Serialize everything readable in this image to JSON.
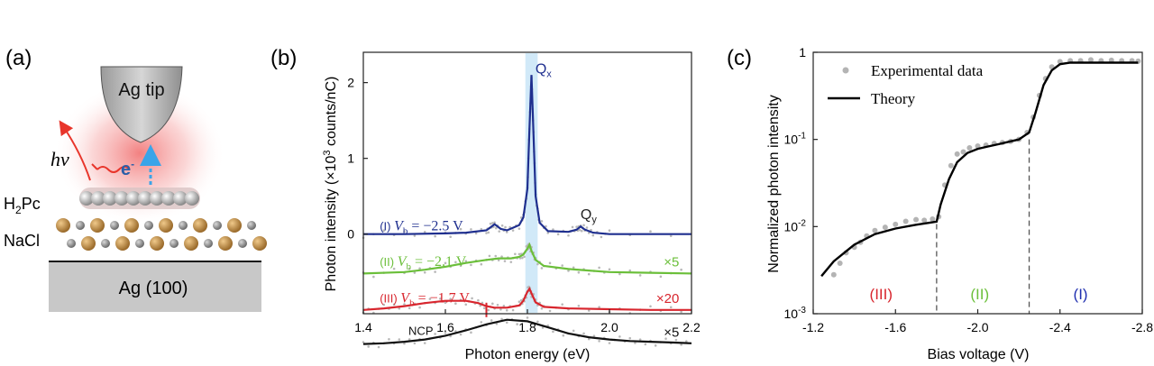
{
  "panel_labels": [
    "(a)",
    "(b)",
    "(c)"
  ],
  "schematic": {
    "tip_label": "Ag tip",
    "photon_label": "hν",
    "electron_label": "e",
    "electron_superscript": "-",
    "molecule_label": "H",
    "molecule_subscript": "2",
    "molecule_suffix": "Pc",
    "salt_label": "NaCl",
    "substrate_label": "Ag (100)",
    "colors": {
      "photon": "#e8352b",
      "electron": "#3aa4e8",
      "tip": "#b8b8b8",
      "substrate": "#c8c8c8"
    }
  },
  "chart_data": [
    {
      "type": "line",
      "xlabel": "Photon energy (eV)",
      "ylabel_prefix": "Photon intensity (×10",
      "ylabel_sup": "3",
      "ylabel_suffix": " counts/nC)",
      "xlim": [
        1.4,
        2.2
      ],
      "ylim": [
        -1.05,
        2.4
      ],
      "xticks": [
        "1.4",
        "1.6",
        "1.8",
        "2.0",
        "2.2"
      ],
      "yticks": [
        "0",
        "1",
        "2"
      ],
      "highlight_band": [
        1.795,
        1.825
      ],
      "series": [
        {
          "name": "(I) Vb = −2.5 V",
          "label_prefix": "(I) ",
          "label_var": "V",
          "label_sub": "b",
          "label_value": " = −2.5 V",
          "multiplier": "",
          "color": "#1f2f8f",
          "x": [
            1.4,
            1.5,
            1.6,
            1.65,
            1.7,
            1.71,
            1.72,
            1.735,
            1.75,
            1.78,
            1.79,
            1.8,
            1.805,
            1.81,
            1.815,
            1.82,
            1.83,
            1.85,
            1.9,
            1.92,
            1.93,
            1.94,
            1.96,
            2.0,
            2.2
          ],
          "y": [
            0.0,
            0.0,
            0.01,
            0.02,
            0.05,
            0.09,
            0.13,
            0.07,
            0.05,
            0.12,
            0.22,
            0.6,
            1.4,
            2.1,
            1.3,
            0.5,
            0.15,
            0.04,
            0.03,
            0.06,
            0.1,
            0.06,
            0.02,
            0.0,
            0.0
          ]
        },
        {
          "name": "(II) Vb = −2.1 V",
          "label_prefix": "(II) ",
          "label_var": "V",
          "label_sub": "b",
          "label_value": " = −2.1 V",
          "multiplier": "×5",
          "color": "#6bbf3a",
          "offset": -0.52,
          "x": [
            1.4,
            1.5,
            1.55,
            1.6,
            1.65,
            1.7,
            1.73,
            1.76,
            1.78,
            1.79,
            1.8,
            1.805,
            1.81,
            1.82,
            1.84,
            1.9,
            1.95,
            2.0,
            2.1,
            2.2
          ],
          "y": [
            0.0,
            0.02,
            0.05,
            0.09,
            0.14,
            0.18,
            0.2,
            0.2,
            0.22,
            0.25,
            0.33,
            0.38,
            0.3,
            0.18,
            0.1,
            0.06,
            0.04,
            0.02,
            0.01,
            0.0
          ]
        },
        {
          "name": "(III) Vb = −1.7 V",
          "label_prefix": "(III) ",
          "label_var": "V",
          "label_sub": "b",
          "label_value": " = −1.7 V",
          "multiplier": "×20",
          "color": "#d8262e",
          "offset": -1.0,
          "x": [
            1.4,
            1.45,
            1.5,
            1.55,
            1.6,
            1.65,
            1.68,
            1.7,
            1.72,
            1.75,
            1.78,
            1.79,
            1.8,
            1.805,
            1.81,
            1.82,
            1.84,
            1.9,
            2.0,
            2.1,
            2.2
          ],
          "y": [
            0.0,
            0.02,
            0.05,
            0.09,
            0.12,
            0.12,
            0.09,
            0.05,
            0.03,
            0.03,
            0.06,
            0.12,
            0.24,
            0.28,
            0.22,
            0.1,
            0.04,
            0.02,
            0.01,
            0.0,
            0.0
          ]
        },
        {
          "name": "NCP",
          "label_prefix": "NCP",
          "multiplier": "×5",
          "color": "#111111",
          "offset": -1.45,
          "x": [
            1.4,
            1.45,
            1.5,
            1.55,
            1.6,
            1.65,
            1.7,
            1.75,
            1.8,
            1.85,
            1.9,
            1.95,
            2.0,
            2.05,
            2.1,
            2.15,
            2.2
          ],
          "y": [
            0.0,
            0.01,
            0.03,
            0.06,
            0.11,
            0.18,
            0.26,
            0.32,
            0.3,
            0.22,
            0.14,
            0.09,
            0.06,
            0.04,
            0.03,
            0.02,
            0.01
          ]
        }
      ],
      "annotations": [
        {
          "text": "Q",
          "sub": "x",
          "x": 1.815,
          "y": 2.12,
          "color": "#1f2f8f"
        },
        {
          "text": "Q",
          "sub": "y",
          "x": 1.925,
          "y": 0.2,
          "color": "#222222"
        }
      ],
      "tick_mark": {
        "x": 1.7,
        "y": -1.0
      }
    },
    {
      "type": "scatter",
      "xlabel": "Bias voltage (V)",
      "ylabel": "Normalized photon intensity",
      "xlim": [
        -1.2,
        -2.8
      ],
      "ylim_log": [
        -3,
        0
      ],
      "yscale": "log",
      "xticks": [
        "-1.2",
        "-1.6",
        "-2.0",
        "-2.4",
        "-2.8"
      ],
      "yticks": [
        {
          "base": "10",
          "exp": "-3"
        },
        {
          "base": "10",
          "exp": "-2"
        },
        {
          "base": "10",
          "exp": "-1"
        },
        {
          "base": "1",
          "exp": ""
        }
      ],
      "legend": [
        "Experimental data",
        "Theory"
      ],
      "legend_position": "top-left",
      "regions": [
        {
          "label": "(III)",
          "x": -1.53,
          "color": "#d8262e"
        },
        {
          "label": "(II)",
          "x": -2.01,
          "color": "#6bbf3a"
        },
        {
          "label": "(I)",
          "x": -2.5,
          "color": "#2030b0"
        }
      ],
      "dividers": [
        -1.8,
        -2.25
      ],
      "theory": {
        "color": "#000000",
        "x": [
          -1.24,
          -1.3,
          -1.4,
          -1.5,
          -1.6,
          -1.7,
          -1.78,
          -1.8,
          -1.82,
          -1.86,
          -1.9,
          -1.95,
          -2.0,
          -2.05,
          -2.1,
          -2.15,
          -2.2,
          -2.25,
          -2.28,
          -2.32,
          -2.36,
          -2.4,
          -2.45,
          -2.5,
          -2.6,
          -2.7,
          -2.78
        ],
        "y": [
          0.0027,
          0.004,
          0.0062,
          0.0082,
          0.0095,
          0.0105,
          0.0112,
          0.0114,
          0.018,
          0.035,
          0.055,
          0.07,
          0.078,
          0.083,
          0.088,
          0.094,
          0.1,
          0.12,
          0.2,
          0.42,
          0.62,
          0.73,
          0.76,
          0.76,
          0.76,
          0.76,
          0.76
        ]
      },
      "experiment": {
        "color": "#b4b4b4",
        "x": [
          -1.3,
          -1.33,
          -1.36,
          -1.4,
          -1.43,
          -1.46,
          -1.5,
          -1.55,
          -1.6,
          -1.65,
          -1.7,
          -1.74,
          -1.78,
          -1.81,
          -1.84,
          -1.87,
          -1.9,
          -1.93,
          -1.96,
          -2.0,
          -2.04,
          -2.08,
          -2.12,
          -2.16,
          -2.2,
          -2.24,
          -2.27,
          -2.3,
          -2.33,
          -2.36,
          -2.4,
          -2.45,
          -2.5,
          -2.55,
          -2.6,
          -2.65,
          -2.7,
          -2.75,
          -2.78
        ],
        "y": [
          0.0028,
          0.0038,
          0.005,
          0.0058,
          0.0066,
          0.0078,
          0.009,
          0.0098,
          0.0106,
          0.0115,
          0.012,
          0.0118,
          0.0122,
          0.013,
          0.03,
          0.05,
          0.068,
          0.072,
          0.08,
          0.084,
          0.086,
          0.09,
          0.092,
          0.095,
          0.1,
          0.12,
          0.18,
          0.32,
          0.5,
          0.68,
          0.78,
          0.8,
          0.8,
          0.82,
          0.8,
          0.81,
          0.8,
          0.8,
          0.79
        ]
      }
    }
  ]
}
